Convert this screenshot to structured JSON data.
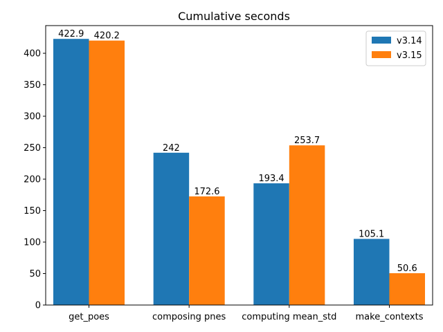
{
  "chart_data": {
    "type": "bar",
    "title": "Cumulative seconds",
    "xlabel": "",
    "ylabel": "",
    "categories": [
      "get_poes",
      "composing pnes",
      "computing mean_std",
      "make_contexts"
    ],
    "series": [
      {
        "name": "v3.14",
        "color": "#1f77b4",
        "values": [
          422.9,
          242,
          193.4,
          105.1
        ],
        "labels": [
          "422.9",
          "242",
          "193.4",
          "105.1"
        ]
      },
      {
        "name": "v3.15",
        "color": "#ff7f0e",
        "values": [
          420.2,
          172.6,
          253.7,
          50.6
        ],
        "labels": [
          "420.2",
          "172.6",
          "253.7",
          "50.6"
        ]
      }
    ],
    "ylim": [
      0,
      444
    ],
    "yticks": [
      0,
      50,
      100,
      150,
      200,
      250,
      300,
      350,
      400
    ],
    "grid": false,
    "legend_position": "top-right"
  }
}
